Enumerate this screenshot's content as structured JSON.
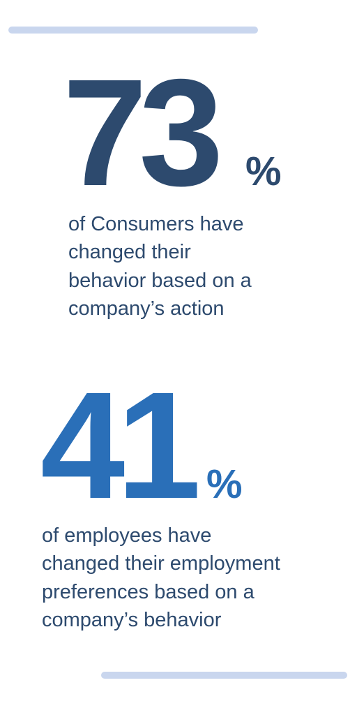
{
  "stats": [
    {
      "number": 73,
      "unit": "%",
      "lines": [
        "of Consumers have",
        "changed their",
        "behavior based on a",
        "company’s action"
      ]
    },
    {
      "number": 41,
      "unit": "%",
      "lines": [
        "of employees have",
        "changed their employment",
        "preferences based on a",
        "company’s behavior"
      ]
    }
  ]
}
